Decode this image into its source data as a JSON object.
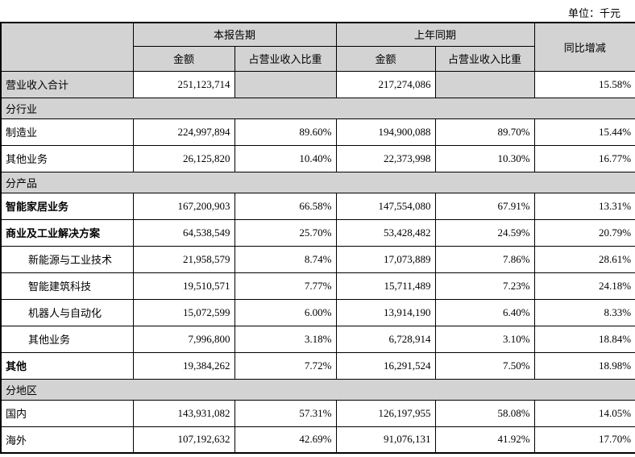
{
  "unit_label": "单位：千元",
  "table": {
    "header": {
      "current_period": "本报告期",
      "prior_period": "上年同期",
      "yoy": "同比增减",
      "amount": "金额",
      "pct": "占营业收入比重"
    },
    "colors": {
      "header_gray": "#d3d3d3",
      "border": "#000000"
    },
    "rows": [
      {
        "type": "data",
        "label": "营业收入合计",
        "cur_amount": "251,123,714",
        "cur_pct": "",
        "prior_amount": "217,274,086",
        "prior_pct": "",
        "yoy": "15.58%",
        "bold": false,
        "indent": false,
        "shaded": true
      },
      {
        "type": "section",
        "label": "分行业"
      },
      {
        "type": "data",
        "label": "制造业",
        "cur_amount": "224,997,894",
        "cur_pct": "89.60%",
        "prior_amount": "194,900,088",
        "prior_pct": "89.70%",
        "yoy": "15.44%",
        "bold": false,
        "indent": false,
        "shaded": false
      },
      {
        "type": "data",
        "label": "其他业务",
        "cur_amount": "26,125,820",
        "cur_pct": "10.40%",
        "prior_amount": "22,373,998",
        "prior_pct": "10.30%",
        "yoy": "16.77%",
        "bold": false,
        "indent": false,
        "shaded": false
      },
      {
        "type": "section",
        "label": "分产品"
      },
      {
        "type": "data",
        "label": "智能家居业务",
        "cur_amount": "167,200,903",
        "cur_pct": "66.58%",
        "prior_amount": "147,554,080",
        "prior_pct": "67.91%",
        "yoy": "13.31%",
        "bold": true,
        "indent": false,
        "shaded": false
      },
      {
        "type": "data",
        "label": "商业及工业解决方案",
        "cur_amount": "64,538,549",
        "cur_pct": "25.70%",
        "prior_amount": "53,428,482",
        "prior_pct": "24.59%",
        "yoy": "20.79%",
        "bold": true,
        "indent": false,
        "shaded": false
      },
      {
        "type": "data",
        "label": "新能源与工业技术",
        "cur_amount": "21,958,579",
        "cur_pct": "8.74%",
        "prior_amount": "17,073,889",
        "prior_pct": "7.86%",
        "yoy": "28.61%",
        "bold": false,
        "indent": true,
        "shaded": false
      },
      {
        "type": "data",
        "label": "智能建筑科技",
        "cur_amount": "19,510,571",
        "cur_pct": "7.77%",
        "prior_amount": "15,711,489",
        "prior_pct": "7.23%",
        "yoy": "24.18%",
        "bold": false,
        "indent": true,
        "shaded": false
      },
      {
        "type": "data",
        "label": "机器人与自动化",
        "cur_amount": "15,072,599",
        "cur_pct": "6.00%",
        "prior_amount": "13,914,190",
        "prior_pct": "6.40%",
        "yoy": "8.33%",
        "bold": false,
        "indent": true,
        "shaded": false
      },
      {
        "type": "data",
        "label": "其他业务",
        "cur_amount": "7,996,800",
        "cur_pct": "3.18%",
        "prior_amount": "6,728,914",
        "prior_pct": "3.10%",
        "yoy": "18.84%",
        "bold": false,
        "indent": true,
        "shaded": false
      },
      {
        "type": "data",
        "label": "其他",
        "cur_amount": "19,384,262",
        "cur_pct": "7.72%",
        "prior_amount": "16,291,524",
        "prior_pct": "7.50%",
        "yoy": "18.98%",
        "bold": true,
        "indent": false,
        "shaded": false
      },
      {
        "type": "section",
        "label": "分地区"
      },
      {
        "type": "data",
        "label": "国内",
        "cur_amount": "143,931,082",
        "cur_pct": "57.31%",
        "prior_amount": "126,197,955",
        "prior_pct": "58.08%",
        "yoy": "14.05%",
        "bold": false,
        "indent": false,
        "shaded": false
      },
      {
        "type": "data",
        "label": "海外",
        "cur_amount": "107,192,632",
        "cur_pct": "42.69%",
        "prior_amount": "91,076,131",
        "prior_pct": "41.92%",
        "yoy": "17.70%",
        "bold": false,
        "indent": false,
        "shaded": false
      }
    ]
  }
}
